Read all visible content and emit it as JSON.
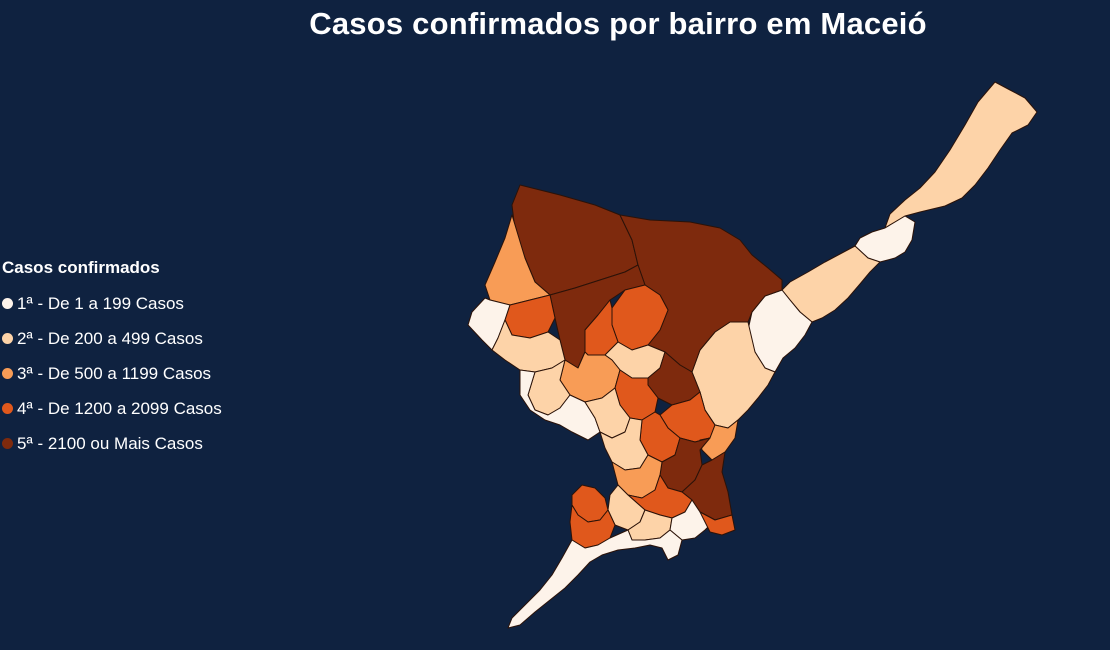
{
  "title": "Casos confirmados por bairro em Maceió",
  "legend": {
    "title": "Casos confirmados",
    "items": [
      {
        "label": "1ª - De 1 a 199 Casos",
        "color": "#fdf3ea"
      },
      {
        "label": "2ª - De 200 a 499 Casos",
        "color": "#fdd3a8"
      },
      {
        "label": "3ª - De 500 a 1199 Casos",
        "color": "#f89c56"
      },
      {
        "label": "4ª - De 1200 a 2099 Casos",
        "color": "#e0581c"
      },
      {
        "label": "5ª - 2100 ou Mais Casos",
        "color": "#7e2a0d"
      }
    ]
  },
  "map": {
    "ocean_color": "#0f2240",
    "border_color": "#2b1208"
  }
}
